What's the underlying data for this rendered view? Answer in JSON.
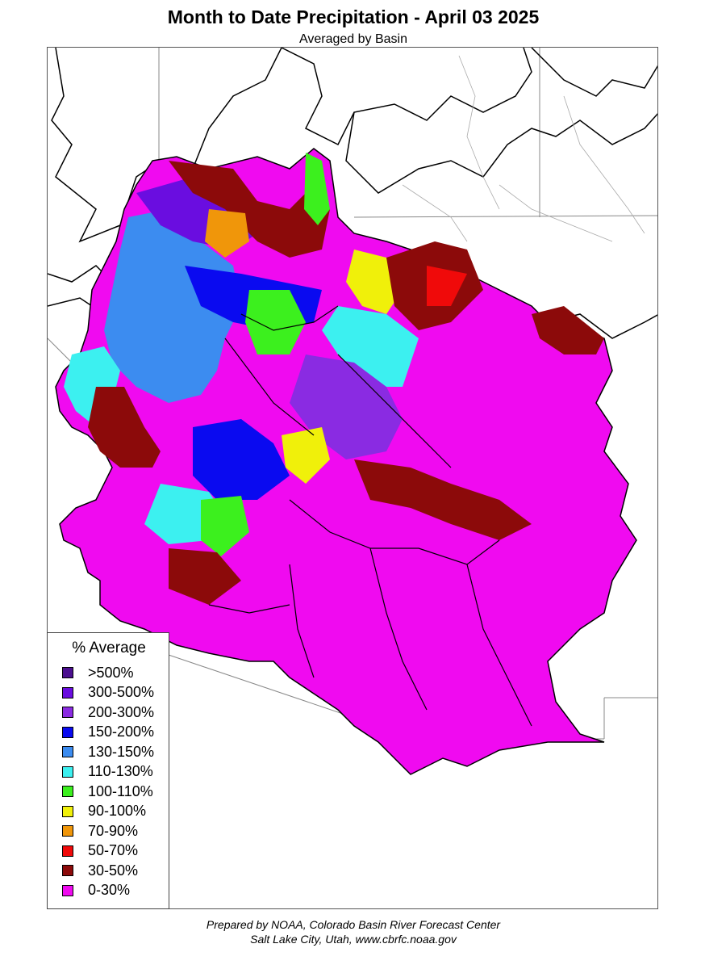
{
  "title": "Month to Date Precipitation - April 03 2025",
  "subtitle": "Averaged by Basin",
  "legend": {
    "title": "% Average",
    "items": [
      {
        "label": ">500%",
        "color": "#4b0f8f"
      },
      {
        "label": "300-500%",
        "color": "#6a0de0"
      },
      {
        "label": "200-300%",
        "color": "#8a2be2"
      },
      {
        "label": "150-200%",
        "color": "#0a0af0"
      },
      {
        "label": "130-150%",
        "color": "#3c8cf0"
      },
      {
        "label": "110-130%",
        "color": "#3cf0f0"
      },
      {
        "label": "100-110%",
        "color": "#3cf01e"
      },
      {
        "label": "90-100%",
        "color": "#f0f00a"
      },
      {
        "label": "70-90%",
        "color": "#f0960a"
      },
      {
        "label": "50-70%",
        "color": "#f00a0a"
      },
      {
        "label": "30-50%",
        "color": "#8c0a0a"
      },
      {
        "label": "0-30%",
        "color": "#f00af0"
      }
    ]
  },
  "credit": {
    "line1": "Prepared by NOAA, Colorado Basin River Forecast Center",
    "line2": "Salt Lake City, Utah, www.cbrfc.noaa.gov"
  }
}
